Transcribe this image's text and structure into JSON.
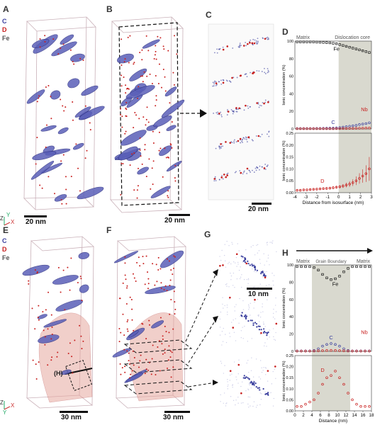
{
  "panels": {
    "A": "A",
    "B": "B",
    "C": "C",
    "D": "D",
    "E": "E",
    "F": "F",
    "G": "G",
    "H": "H"
  },
  "legend": {
    "c": "C",
    "d": "D",
    "fe": "Fe"
  },
  "axes_tri": {
    "z": "Z",
    "y": "Y",
    "x": "X"
  },
  "scalebars": {
    "a": "20 nm",
    "b": "20 nm",
    "c": "20 nm",
    "e": "30 nm",
    "f": "30 nm",
    "g": "10 nm"
  },
  "e_marker": "(H)",
  "colors": {
    "c": "#3a3f9e",
    "d": "#c8201f",
    "fe": "#555555",
    "band": "#d9d9cf",
    "pink": "#e7a8a0"
  },
  "chart_data": [
    {
      "id": "D",
      "type": "scatter",
      "xlabel": "Distance from isosurface (nm)",
      "ylabel_top": "Ionic concentration (%)",
      "ylabel_bottom": "Ionic concentration (%)",
      "region_left": "Matrix",
      "region_right": "Dislocation core",
      "x_ticks": [
        "-4",
        "-3",
        "-2",
        "-1",
        "0",
        "1",
        "2",
        "3"
      ],
      "xlim": [
        -4,
        3
      ],
      "top_ylim": [
        0,
        100
      ],
      "top_y_ticks": [
        "0",
        "20",
        "40",
        "60",
        "80",
        "100"
      ],
      "bottom_ylim": [
        0,
        0.25
      ],
      "bottom_y_ticks": [
        "0.00",
        "0.05",
        "0.10",
        "0.15",
        "0.20",
        "0.25"
      ],
      "band": [
        0,
        3
      ],
      "x": [
        -3.8,
        -3.5,
        -3.2,
        -2.9,
        -2.6,
        -2.3,
        -2.0,
        -1.7,
        -1.4,
        -1.1,
        -0.8,
        -0.5,
        -0.2,
        0.1,
        0.4,
        0.7,
        1.0,
        1.3,
        1.6,
        1.9,
        2.2,
        2.5,
        2.8
      ],
      "series": [
        {
          "name": "Fe",
          "panel": "top",
          "color": "#111111",
          "values": [
            99,
            99,
            99,
            99,
            99,
            99,
            98.8,
            98.7,
            98.5,
            98.3,
            98.0,
            97.5,
            97,
            96,
            95,
            94,
            93,
            92,
            91,
            90,
            89,
            88,
            87
          ]
        },
        {
          "name": "C",
          "panel": "top",
          "color": "#3a3f9e",
          "values": [
            0.5,
            0.5,
            0.5,
            0.5,
            0.5,
            0.5,
            0.6,
            0.6,
            0.7,
            0.8,
            0.9,
            1.0,
            1.2,
            1.5,
            2,
            2.5,
            3,
            3.5,
            4,
            5,
            5.5,
            6,
            7
          ]
        },
        {
          "name": "Nb",
          "panel": "top",
          "color": "#c8201f",
          "values": [
            0.3,
            0.3,
            0.3,
            0.3,
            0.3,
            0.3,
            0.3,
            0.3,
            0.3,
            0.3,
            0.3,
            0.3,
            0.4,
            0.4,
            0.5,
            0.5,
            0.6,
            0.6,
            0.7,
            0.8,
            0.9,
            1.0,
            1.1
          ]
        },
        {
          "name": "D",
          "panel": "bottom",
          "color": "#c8201f",
          "values": [
            0.01,
            0.01,
            0.012,
            0.012,
            0.013,
            0.014,
            0.015,
            0.016,
            0.017,
            0.018,
            0.019,
            0.021,
            0.023,
            0.025,
            0.028,
            0.032,
            0.036,
            0.042,
            0.05,
            0.06,
            0.07,
            0.08,
            0.1
          ],
          "errors": [
            0.003,
            0.003,
            0.003,
            0.003,
            0.004,
            0.004,
            0.004,
            0.004,
            0.005,
            0.005,
            0.005,
            0.006,
            0.006,
            0.007,
            0.008,
            0.01,
            0.012,
            0.014,
            0.018,
            0.022,
            0.028,
            0.035,
            0.05
          ]
        }
      ]
    },
    {
      "id": "H",
      "type": "scatter",
      "xlabel": "Distance (nm)",
      "ylabel_top": "Ionic concentration (%)",
      "ylabel_bottom": "Ionic concentration (%)",
      "region_left": "Matrix",
      "region_mid": "Grain Boundary",
      "region_right": "Matrix",
      "x_ticks": [
        "0",
        "2",
        "4",
        "6",
        "8",
        "10",
        "12",
        "14",
        "16",
        "18"
      ],
      "xlim": [
        0,
        18
      ],
      "top_ylim": [
        0,
        100
      ],
      "top_y_ticks": [
        "0",
        "20",
        "40",
        "60",
        "80",
        "100"
      ],
      "bottom_ylim": [
        0,
        0.25
      ],
      "bottom_y_ticks": [
        "0.00",
        "0.05",
        "0.10",
        "0.15",
        "0.20",
        "0.25"
      ],
      "band": [
        4,
        13
      ],
      "x": [
        0.5,
        1.5,
        2.5,
        3.5,
        4.5,
        5.5,
        6.5,
        7.5,
        8.5,
        9.5,
        10.5,
        11.5,
        12.5,
        13.5,
        14.5,
        15.5,
        16.5,
        17.5
      ],
      "series": [
        {
          "name": "Fe",
          "panel": "top",
          "color": "#111111",
          "values": [
            98,
            98,
            98,
            98,
            97,
            94,
            89,
            85,
            83,
            84,
            87,
            92,
            96,
            98,
            98,
            98,
            98,
            98
          ]
        },
        {
          "name": "C",
          "panel": "top",
          "color": "#3a3f9e",
          "values": [
            0.5,
            0.5,
            0.5,
            0.5,
            1,
            3,
            6,
            8,
            9,
            8,
            6,
            3,
            1,
            0.5,
            0.5,
            0.5,
            0.5,
            0.5
          ]
        },
        {
          "name": "Nb",
          "panel": "top",
          "color": "#c8201f",
          "values": [
            0.3,
            0.3,
            0.3,
            0.3,
            0.4,
            0.6,
            0.8,
            1.0,
            1.1,
            1.0,
            0.8,
            0.6,
            0.4,
            0.3,
            0.3,
            0.3,
            0.3,
            0.3
          ]
        },
        {
          "name": "D",
          "panel": "bottom",
          "color": "#c8201f",
          "values": [
            0.02,
            0.02,
            0.03,
            0.04,
            0.05,
            0.08,
            0.12,
            0.15,
            0.16,
            0.18,
            0.15,
            0.12,
            0.08,
            0.05,
            0.03,
            0.02,
            0.02,
            0.02
          ]
        }
      ]
    }
  ]
}
